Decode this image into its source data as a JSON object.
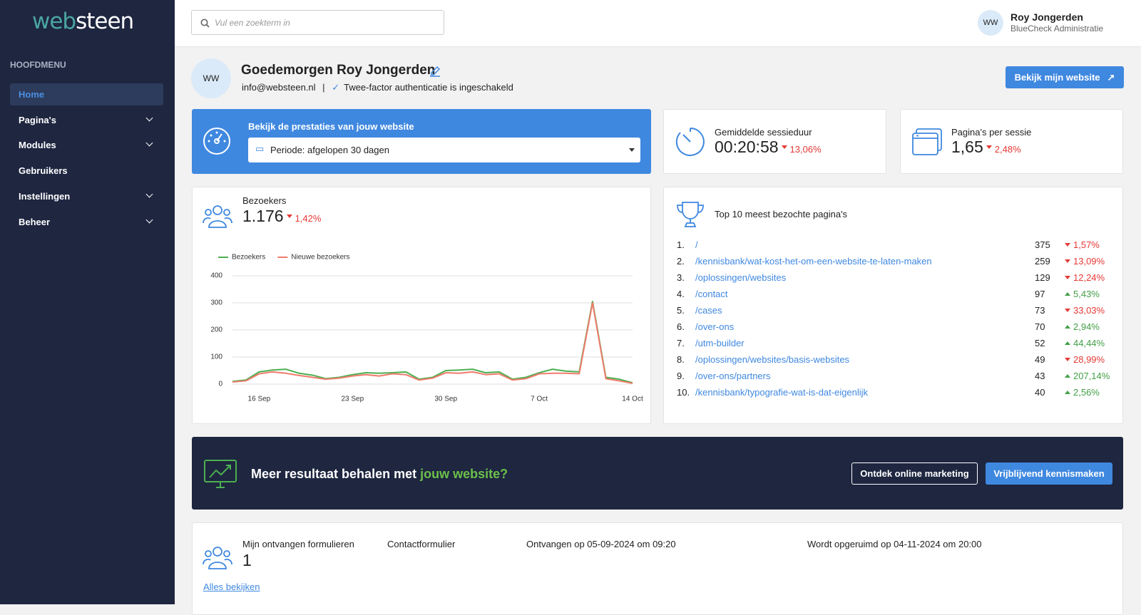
{
  "sidebar": {
    "logo_left": "web",
    "logo_right": "steen",
    "menu_title": "HOOFDMENU",
    "items": [
      {
        "label": "Home",
        "active": true,
        "expandable": false
      },
      {
        "label": "Pagina's",
        "active": false,
        "expandable": true
      },
      {
        "label": "Modules",
        "active": false,
        "expandable": true
      },
      {
        "label": "Gebruikers",
        "active": false,
        "expandable": false
      },
      {
        "label": "Instellingen",
        "active": false,
        "expandable": true
      },
      {
        "label": "Beheer",
        "active": false,
        "expandable": true
      }
    ]
  },
  "header": {
    "search_placeholder": "Vul een zoekterm in",
    "avatar": "WW",
    "user_name": "Roy Jongerden",
    "user_org": "BlueCheck Administratie"
  },
  "profile": {
    "avatar": "WW",
    "greeting": "Goedemorgen Roy Jongerden",
    "email": "info@websteen.nl",
    "separator": "|",
    "twofactor": "Twee-factor authenticatie is ingeschakeld",
    "button": "Bekijk mijn website"
  },
  "performance": {
    "title": "Bekijk de prestaties van jouw website",
    "period": "Periode: afgelopen 30 dagen"
  },
  "stats": [
    {
      "label": "Gemiddelde sessieduur",
      "value": "00:20:58",
      "change": "13,06%",
      "direction": "down"
    },
    {
      "label": "Pagina's per sessie",
      "value": "1,65",
      "change": "2,48%",
      "direction": "down"
    }
  ],
  "visitors": {
    "label": "Bezoekers",
    "value": "1.176",
    "change": "1,42%",
    "direction": "down"
  },
  "chart_data": {
    "type": "line",
    "categories": [
      null,
      null,
      "16 Sep",
      null,
      null,
      null,
      null,
      null,
      null,
      "23 Sep",
      null,
      null,
      null,
      null,
      null,
      null,
      "30 Sep",
      null,
      null,
      null,
      null,
      null,
      null,
      "7 Oct",
      null,
      null,
      null,
      null,
      null,
      null,
      "14 Oct"
    ],
    "series": [
      {
        "name": "Bezoekers",
        "color": "#4caf50",
        "values": [
          10,
          15,
          45,
          52,
          55,
          40,
          33,
          20,
          25,
          35,
          42,
          40,
          42,
          45,
          18,
          25,
          50,
          52,
          55,
          42,
          45,
          18,
          25,
          42,
          55,
          48,
          45,
          305,
          25,
          18,
          5
        ]
      },
      {
        "name": "Nieuwe bezoekers",
        "color": "#ef7b6c",
        "values": [
          8,
          12,
          38,
          45,
          40,
          32,
          25,
          18,
          22,
          30,
          35,
          30,
          38,
          35,
          15,
          22,
          42,
          40,
          45,
          35,
          38,
          15,
          20,
          38,
          40,
          40,
          38,
          300,
          20,
          12,
          3
        ]
      }
    ],
    "ylim": [
      0,
      400
    ],
    "yticks": [
      0,
      100,
      200,
      300,
      400
    ],
    "grid": true,
    "legend": "top-left"
  },
  "top_pages": {
    "title": "Top 10 meest bezochte pagina's",
    "rows": [
      {
        "rank": "1.",
        "path": "/",
        "visits": 375,
        "change": "1,57%",
        "direction": "down"
      },
      {
        "rank": "2.",
        "path": "/kennisbank/wat-kost-het-om-een-website-te-laten-maken",
        "visits": 259,
        "change": "13,09%",
        "direction": "down"
      },
      {
        "rank": "3.",
        "path": "/oplossingen/websites",
        "visits": 129,
        "change": "12,24%",
        "direction": "down"
      },
      {
        "rank": "4.",
        "path": "/contact",
        "visits": 97,
        "change": "5,43%",
        "direction": "up"
      },
      {
        "rank": "5.",
        "path": "/cases",
        "visits": 73,
        "change": "33,03%",
        "direction": "down"
      },
      {
        "rank": "6.",
        "path": "/over-ons",
        "visits": 70,
        "change": "2,94%",
        "direction": "up"
      },
      {
        "rank": "7.",
        "path": "/utm-builder",
        "visits": 52,
        "change": "44,44%",
        "direction": "up"
      },
      {
        "rank": "8.",
        "path": "/oplossingen/websites/basis-websites",
        "visits": 49,
        "change": "28,99%",
        "direction": "down"
      },
      {
        "rank": "9.",
        "path": "/over-ons/partners",
        "visits": 43,
        "change": "207,14%",
        "direction": "up"
      },
      {
        "rank": "10.",
        "path": "/kennisbank/typografie-wat-is-dat-eigenlijk",
        "visits": 40,
        "change": "2,56%",
        "direction": "up"
      }
    ]
  },
  "banner": {
    "text": "Meer resultaat behalen met",
    "highlight": "jouw website?",
    "button_secondary": "Ontdek online marketing",
    "button_primary": "Vrijblijvend kennismaken"
  },
  "forms": {
    "label": "Mijn ontvangen formulieren",
    "count": 1,
    "type": "Contactformulier",
    "received": "Ontvangen op 05-09-2024 om 09:20",
    "cleanup": "Wordt opgeruimd op 04-11-2024 om 20:00",
    "link": "Alles bekijken"
  }
}
